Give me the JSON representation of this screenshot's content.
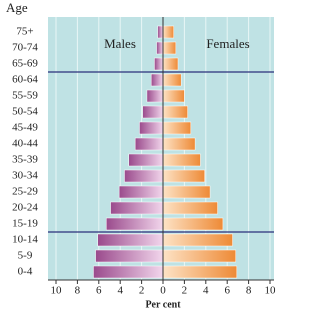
{
  "chart_data": {
    "type": "pyramid",
    "y_label": "Age",
    "x_label": "Per cent",
    "categories": [
      "0-4",
      "5-9",
      "10-14",
      "15-19",
      "20-24",
      "25-29",
      "30-34",
      "35-39",
      "40-44",
      "45-49",
      "50-54",
      "55-59",
      "60-64",
      "65-69",
      "70-74",
      "75+"
    ],
    "series": [
      {
        "name": "Males",
        "color": "#9a4a8c",
        "values": [
          6.5,
          6.3,
          6.1,
          5.3,
          4.9,
          4.1,
          3.6,
          3.2,
          2.6,
          2.2,
          1.9,
          1.5,
          1.1,
          0.8,
          0.6,
          0.5
        ]
      },
      {
        "name": "Females",
        "color": "#ee8a36",
        "values": [
          6.9,
          6.8,
          6.5,
          5.6,
          5.1,
          4.4,
          3.9,
          3.5,
          3.0,
          2.6,
          2.3,
          2.0,
          1.7,
          1.4,
          1.2,
          1.0
        ]
      }
    ],
    "xlim": [
      -10,
      10
    ],
    "xticks": [
      {
        "value": -10,
        "label": "10"
      },
      {
        "value": -8,
        "label": "8"
      },
      {
        "value": -6,
        "label": "6"
      },
      {
        "value": -4,
        "label": "4"
      },
      {
        "value": -2,
        "label": "2"
      },
      0,
      2,
      4,
      6,
      8,
      10
    ],
    "grid": true
  }
}
